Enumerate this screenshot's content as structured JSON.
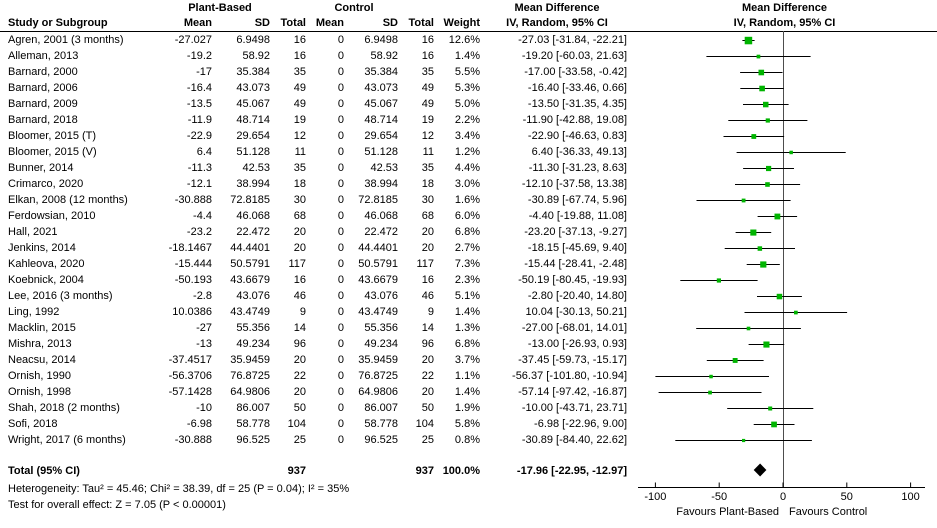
{
  "table": {
    "group1_header": "Plant-Based",
    "group2_header": "Control",
    "md_header_line1": "Mean Difference",
    "md_header_line2": "IV, Random, 95% CI",
    "plot_header_line1": "Mean Difference",
    "plot_header_line2": "IV, Random, 95% CI",
    "col_headers": {
      "study": "Study or Subgroup",
      "mean": "Mean",
      "sd": "SD",
      "total": "Total",
      "weight": "Weight"
    },
    "rows": [
      {
        "study": "Agren, 2001 (3 months)",
        "p_mean": "-27.027",
        "p_sd": "6.9498",
        "p_total": "16",
        "c_mean": "0",
        "c_sd": "6.9498",
        "c_total": "16",
        "weight": "12.6%",
        "md": "-27.03 [-31.84, -22.21]"
      },
      {
        "study": "Alleman, 2013",
        "p_mean": "-19.2",
        "p_sd": "58.92",
        "p_total": "16",
        "c_mean": "0",
        "c_sd": "58.92",
        "c_total": "16",
        "weight": "1.4%",
        "md": "-19.20 [-60.03, 21.63]"
      },
      {
        "study": "Barnard, 2000",
        "p_mean": "-17",
        "p_sd": "35.384",
        "p_total": "35",
        "c_mean": "0",
        "c_sd": "35.384",
        "c_total": "35",
        "weight": "5.5%",
        "md": "-17.00 [-33.58, -0.42]"
      },
      {
        "study": "Barnard, 2006",
        "p_mean": "-16.4",
        "p_sd": "43.073",
        "p_total": "49",
        "c_mean": "0",
        "c_sd": "43.073",
        "c_total": "49",
        "weight": "5.3%",
        "md": "-16.40 [-33.46, 0.66]"
      },
      {
        "study": "Barnard, 2009",
        "p_mean": "-13.5",
        "p_sd": "45.067",
        "p_total": "49",
        "c_mean": "0",
        "c_sd": "45.067",
        "c_total": "49",
        "weight": "5.0%",
        "md": "-13.50 [-31.35, 4.35]"
      },
      {
        "study": "Barnard, 2018",
        "p_mean": "-11.9",
        "p_sd": "48.714",
        "p_total": "19",
        "c_mean": "0",
        "c_sd": "48.714",
        "c_total": "19",
        "weight": "2.2%",
        "md": "-11.90 [-42.88, 19.08]"
      },
      {
        "study": "Bloomer, 2015 (T)",
        "p_mean": "-22.9",
        "p_sd": "29.654",
        "p_total": "12",
        "c_mean": "0",
        "c_sd": "29.654",
        "c_total": "12",
        "weight": "3.4%",
        "md": "-22.90 [-46.63, 0.83]"
      },
      {
        "study": "Bloomer, 2015 (V)",
        "p_mean": "6.4",
        "p_sd": "51.128",
        "p_total": "11",
        "c_mean": "0",
        "c_sd": "51.128",
        "c_total": "11",
        "weight": "1.2%",
        "md": "6.40 [-36.33, 49.13]"
      },
      {
        "study": "Bunner, 2014",
        "p_mean": "-11.3",
        "p_sd": "42.53",
        "p_total": "35",
        "c_mean": "0",
        "c_sd": "42.53",
        "c_total": "35",
        "weight": "4.4%",
        "md": "-11.30 [-31.23, 8.63]"
      },
      {
        "study": "Crimarco, 2020",
        "p_mean": "-12.1",
        "p_sd": "38.994",
        "p_total": "18",
        "c_mean": "0",
        "c_sd": "38.994",
        "c_total": "18",
        "weight": "3.0%",
        "md": "-12.10 [-37.58, 13.38]"
      },
      {
        "study": "Elkan, 2008 (12 months)",
        "p_mean": "-30.888",
        "p_sd": "72.8185",
        "p_total": "30",
        "c_mean": "0",
        "c_sd": "72.8185",
        "c_total": "30",
        "weight": "1.6%",
        "md": "-30.89 [-67.74, 5.96]"
      },
      {
        "study": "Ferdowsian, 2010",
        "p_mean": "-4.4",
        "p_sd": "46.068",
        "p_total": "68",
        "c_mean": "0",
        "c_sd": "46.068",
        "c_total": "68",
        "weight": "6.0%",
        "md": "-4.40 [-19.88, 11.08]"
      },
      {
        "study": "Hall, 2021",
        "p_mean": "-23.2",
        "p_sd": "22.472",
        "p_total": "20",
        "c_mean": "0",
        "c_sd": "22.472",
        "c_total": "20",
        "weight": "6.8%",
        "md": "-23.20 [-37.13, -9.27]"
      },
      {
        "study": "Jenkins, 2014",
        "p_mean": "-18.1467",
        "p_sd": "44.4401",
        "p_total": "20",
        "c_mean": "0",
        "c_sd": "44.4401",
        "c_total": "20",
        "weight": "2.7%",
        "md": "-18.15 [-45.69, 9.40]"
      },
      {
        "study": "Kahleova, 2020",
        "p_mean": "-15.444",
        "p_sd": "50.5791",
        "p_total": "117",
        "c_mean": "0",
        "c_sd": "50.5791",
        "c_total": "117",
        "weight": "7.3%",
        "md": "-15.44 [-28.41, -2.48]"
      },
      {
        "study": "Koebnick, 2004",
        "p_mean": "-50.193",
        "p_sd": "43.6679",
        "p_total": "16",
        "c_mean": "0",
        "c_sd": "43.6679",
        "c_total": "16",
        "weight": "2.3%",
        "md": "-50.19 [-80.45, -19.93]"
      },
      {
        "study": "Lee, 2016 (3 months)",
        "p_mean": "-2.8",
        "p_sd": "43.076",
        "p_total": "46",
        "c_mean": "0",
        "c_sd": "43.076",
        "c_total": "46",
        "weight": "5.1%",
        "md": "-2.80 [-20.40, 14.80]"
      },
      {
        "study": "Ling, 1992",
        "p_mean": "10.0386",
        "p_sd": "43.4749",
        "p_total": "9",
        "c_mean": "0",
        "c_sd": "43.4749",
        "c_total": "9",
        "weight": "1.4%",
        "md": "10.04 [-30.13, 50.21]"
      },
      {
        "study": "Macklin, 2015",
        "p_mean": "-27",
        "p_sd": "55.356",
        "p_total": "14",
        "c_mean": "0",
        "c_sd": "55.356",
        "c_total": "14",
        "weight": "1.3%",
        "md": "-27.00 [-68.01, 14.01]"
      },
      {
        "study": "Mishra, 2013",
        "p_mean": "-13",
        "p_sd": "49.234",
        "p_total": "96",
        "c_mean": "0",
        "c_sd": "49.234",
        "c_total": "96",
        "weight": "6.8%",
        "md": "-13.00 [-26.93, 0.93]"
      },
      {
        "study": "Neacsu, 2014",
        "p_mean": "-37.4517",
        "p_sd": "35.9459",
        "p_total": "20",
        "c_mean": "0",
        "c_sd": "35.9459",
        "c_total": "20",
        "weight": "3.7%",
        "md": "-37.45 [-59.73, -15.17]"
      },
      {
        "study": "Ornish, 1990",
        "p_mean": "-56.3706",
        "p_sd": "76.8725",
        "p_total": "22",
        "c_mean": "0",
        "c_sd": "76.8725",
        "c_total": "22",
        "weight": "1.1%",
        "md": "-56.37 [-101.80, -10.94]"
      },
      {
        "study": "Ornish, 1998",
        "p_mean": "-57.1428",
        "p_sd": "64.9806",
        "p_total": "20",
        "c_mean": "0",
        "c_sd": "64.9806",
        "c_total": "20",
        "weight": "1.4%",
        "md": "-57.14 [-97.42, -16.87]"
      },
      {
        "study": "Shah, 2018 (2 months)",
        "p_mean": "-10",
        "p_sd": "86.007",
        "p_total": "50",
        "c_mean": "0",
        "c_sd": "86.007",
        "c_total": "50",
        "weight": "1.9%",
        "md": "-10.00 [-43.71, 23.71]"
      },
      {
        "study": "Sofi, 2018",
        "p_mean": "-6.98",
        "p_sd": "58.778",
        "p_total": "104",
        "c_mean": "0",
        "c_sd": "58.778",
        "c_total": "104",
        "weight": "5.8%",
        "md": "-6.98 [-22.96, 9.00]"
      },
      {
        "study": "Wright, 2017 (6 months)",
        "p_mean": "-30.888",
        "p_sd": "96.525",
        "p_total": "25",
        "c_mean": "0",
        "c_sd": "96.525",
        "c_total": "25",
        "weight": "0.8%",
        "md": "-30.89 [-84.40, 22.62]"
      }
    ],
    "total_row": {
      "label": "Total (95% CI)",
      "p_total": "937",
      "c_total": "937",
      "weight": "100.0%",
      "md": "-17.96 [-22.95, -12.97]"
    }
  },
  "footer": {
    "heterogeneity": "Heterogeneity: Tau² = 45.46; Chi² = 38.39, df = 25 (P = 0.04); I² = 35%",
    "overall_effect": "Test for overall effect: Z = 7.05 (P < 0.00001)"
  },
  "chart_data": {
    "type": "forest",
    "effect_measure": "Mean Difference, IV, Random, 95% CI",
    "xlim": [
      -100,
      100
    ],
    "x_ticks": [
      -100,
      -50,
      0,
      50,
      100
    ],
    "favours_left": "Favours Plant-Based",
    "favours_right": "Favours Control",
    "marker_color": "#00b400",
    "line_color": "#000000",
    "zero_line_color": "#4d4d4d",
    "studies": [
      {
        "name": "Agren, 2001 (3 months)",
        "est": -27.03,
        "lo": -31.84,
        "hi": -22.21,
        "weight": 12.6
      },
      {
        "name": "Alleman, 2013",
        "est": -19.2,
        "lo": -60.03,
        "hi": 21.63,
        "weight": 1.4
      },
      {
        "name": "Barnard, 2000",
        "est": -17.0,
        "lo": -33.58,
        "hi": -0.42,
        "weight": 5.5
      },
      {
        "name": "Barnard, 2006",
        "est": -16.4,
        "lo": -33.46,
        "hi": 0.66,
        "weight": 5.3
      },
      {
        "name": "Barnard, 2009",
        "est": -13.5,
        "lo": -31.35,
        "hi": 4.35,
        "weight": 5.0
      },
      {
        "name": "Barnard, 2018",
        "est": -11.9,
        "lo": -42.88,
        "hi": 19.08,
        "weight": 2.2
      },
      {
        "name": "Bloomer, 2015 (T)",
        "est": -22.9,
        "lo": -46.63,
        "hi": 0.83,
        "weight": 3.4
      },
      {
        "name": "Bloomer, 2015 (V)",
        "est": 6.4,
        "lo": -36.33,
        "hi": 49.13,
        "weight": 1.2
      },
      {
        "name": "Bunner, 2014",
        "est": -11.3,
        "lo": -31.23,
        "hi": 8.63,
        "weight": 4.4
      },
      {
        "name": "Crimarco, 2020",
        "est": -12.1,
        "lo": -37.58,
        "hi": 13.38,
        "weight": 3.0
      },
      {
        "name": "Elkan, 2008 (12 months)",
        "est": -30.89,
        "lo": -67.74,
        "hi": 5.96,
        "weight": 1.6
      },
      {
        "name": "Ferdowsian, 2010",
        "est": -4.4,
        "lo": -19.88,
        "hi": 11.08,
        "weight": 6.0
      },
      {
        "name": "Hall, 2021",
        "est": -23.2,
        "lo": -37.13,
        "hi": -9.27,
        "weight": 6.8
      },
      {
        "name": "Jenkins, 2014",
        "est": -18.15,
        "lo": -45.69,
        "hi": 9.4,
        "weight": 2.7
      },
      {
        "name": "Kahleova, 2020",
        "est": -15.44,
        "lo": -28.41,
        "hi": -2.48,
        "weight": 7.3
      },
      {
        "name": "Koebnick, 2004",
        "est": -50.19,
        "lo": -80.45,
        "hi": -19.93,
        "weight": 2.3
      },
      {
        "name": "Lee, 2016 (3 months)",
        "est": -2.8,
        "lo": -20.4,
        "hi": 14.8,
        "weight": 5.1
      },
      {
        "name": "Ling, 1992",
        "est": 10.04,
        "lo": -30.13,
        "hi": 50.21,
        "weight": 1.4
      },
      {
        "name": "Macklin, 2015",
        "est": -27.0,
        "lo": -68.01,
        "hi": 14.01,
        "weight": 1.3
      },
      {
        "name": "Mishra, 2013",
        "est": -13.0,
        "lo": -26.93,
        "hi": 0.93,
        "weight": 6.8
      },
      {
        "name": "Neacsu, 2014",
        "est": -37.45,
        "lo": -59.73,
        "hi": -15.17,
        "weight": 3.7
      },
      {
        "name": "Ornish, 1990",
        "est": -56.37,
        "lo": -101.8,
        "hi": -10.94,
        "weight": 1.1
      },
      {
        "name": "Ornish, 1998",
        "est": -57.14,
        "lo": -97.42,
        "hi": -16.87,
        "weight": 1.4
      },
      {
        "name": "Shah, 2018 (2 months)",
        "est": -10.0,
        "lo": -43.71,
        "hi": 23.71,
        "weight": 1.9
      },
      {
        "name": "Sofi, 2018",
        "est": -6.98,
        "lo": -22.96,
        "hi": 9.0,
        "weight": 5.8
      },
      {
        "name": "Wright, 2017 (6 months)",
        "est": -30.89,
        "lo": -84.4,
        "hi": 22.62,
        "weight": 0.8
      }
    ],
    "total": {
      "name": "Total (95% CI)",
      "est": -17.96,
      "lo": -22.95,
      "hi": -12.97,
      "weight": 100.0
    }
  }
}
